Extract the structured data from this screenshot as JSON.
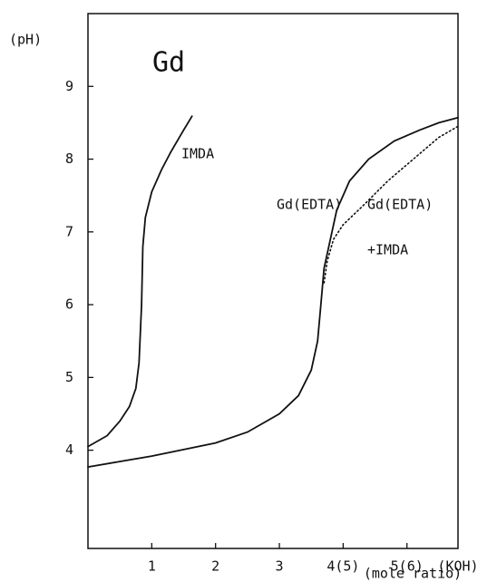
{
  "chart_data": {
    "type": "line",
    "title": "Gd",
    "y_label": "(pH)",
    "x_label": "(KOH)",
    "x_sublabel": "(mole ratio)",
    "xlim": [
      0,
      5.8
    ],
    "ylim": [
      2.65,
      10
    ],
    "xticks": [
      1,
      2,
      3,
      {
        "value": 4,
        "label": "4(5)"
      },
      {
        "value": 5,
        "label": "5(6)"
      }
    ],
    "yticks": [
      4,
      5,
      6,
      7,
      8,
      9
    ],
    "color": "#111111",
    "series": [
      {
        "name": "IMDA",
        "style": "solid",
        "x": [
          0,
          0.3,
          0.5,
          0.65,
          0.75,
          0.8,
          0.84,
          0.86,
          0.9,
          1.0,
          1.15,
          1.3,
          1.5,
          1.63
        ],
        "values": [
          4.05,
          4.2,
          4.4,
          4.6,
          4.85,
          5.2,
          6.0,
          6.8,
          7.2,
          7.55,
          7.85,
          8.1,
          8.4,
          8.59
        ]
      },
      {
        "name": "Gd(EDTA)",
        "style": "solid",
        "x": [
          0,
          1,
          2,
          2.5,
          3,
          3.3,
          3.5,
          3.6,
          3.65,
          3.7,
          3.8,
          3.9,
          4.1,
          4.4,
          4.8,
          5.2,
          5.5,
          5.8
        ],
        "values": [
          3.77,
          3.92,
          4.1,
          4.25,
          4.5,
          4.75,
          5.1,
          5.5,
          6.0,
          6.5,
          6.9,
          7.3,
          7.7,
          8.0,
          8.25,
          8.4,
          8.5,
          8.57
        ]
      },
      {
        "name": "Gd(EDTA)",
        "name_line2": "+IMDA",
        "style": "dotted",
        "x": [
          3.7,
          3.75,
          3.85,
          4.0,
          4.3,
          4.7,
          5.1,
          5.5,
          5.8
        ],
        "values": [
          6.3,
          6.6,
          6.9,
          7.1,
          7.35,
          7.7,
          8.0,
          8.3,
          8.45
        ]
      }
    ]
  }
}
